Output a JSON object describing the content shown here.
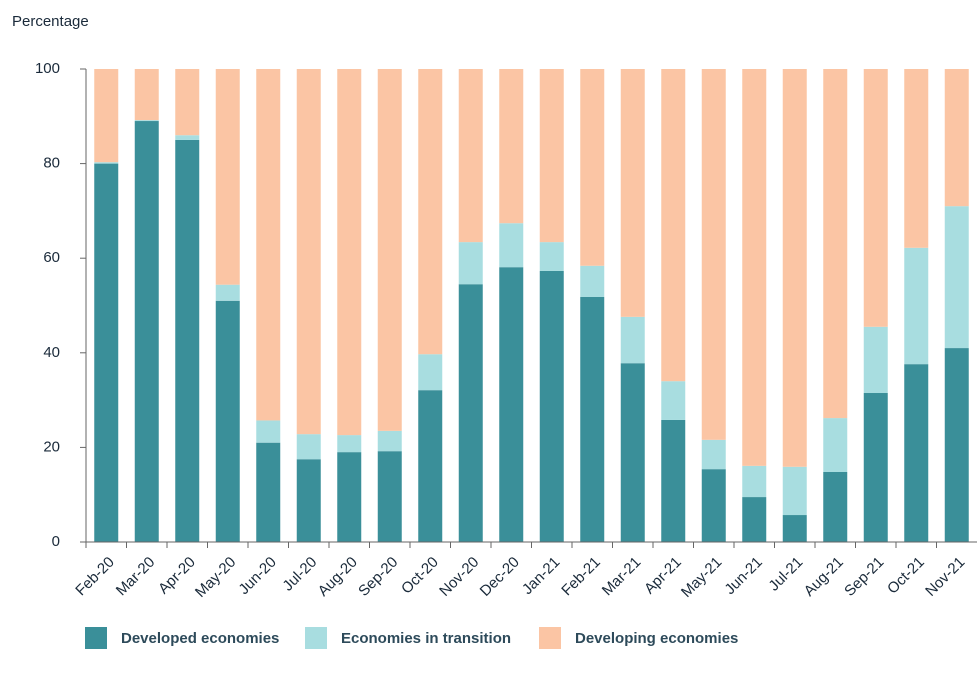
{
  "chart_data": {
    "type": "stacked_bar",
    "y_axis_label": "Percentage",
    "categories": [
      "Feb-20",
      "Mar-20",
      "Apr-20",
      "May-20",
      "Jun-20",
      "Jul-20",
      "Aug-20",
      "Sep-20",
      "Oct-20",
      "Nov-20",
      "Dec-20",
      "Jan-21",
      "Feb-21",
      "Mar-21",
      "Apr-21",
      "May-21",
      "Jun-21",
      "Jul-21",
      "Aug-21",
      "Sep-21",
      "Oct-21",
      "Nov-21"
    ],
    "series": [
      {
        "name": "Developed economies",
        "color": "#3a8f99",
        "values": [
          80,
          89,
          85,
          51,
          21,
          17.5,
          19,
          19.2,
          32.1,
          54.5,
          58.1,
          57.3,
          51.8,
          37.8,
          25.8,
          15.4,
          9.5,
          5.7,
          14.8,
          31.5,
          37.6,
          41
        ]
      },
      {
        "name": "Economies in transition",
        "color": "#a8dde0",
        "values": [
          0.3,
          0.2,
          1,
          3.4,
          4.7,
          5.3,
          3.6,
          4.3,
          7.6,
          8.9,
          9.3,
          6.1,
          6.6,
          9.8,
          8.2,
          6.2,
          6.6,
          10.2,
          11.4,
          14,
          24.6,
          30
        ]
      },
      {
        "name": "Developing economies",
        "color": "#fbc5a4",
        "values": [
          19.7,
          10.8,
          14,
          45.6,
          74.3,
          77.2,
          77.4,
          76.5,
          60.3,
          36.6,
          32.6,
          36.6,
          41.6,
          52.4,
          66,
          78.4,
          83.9,
          84.1,
          73.8,
          54.5,
          37.8,
          29
        ]
      }
    ],
    "ylim": [
      0,
      100
    ],
    "yticks": [
      0,
      20,
      40,
      60,
      80,
      100
    ],
    "grid": false,
    "legend": "bottom"
  }
}
